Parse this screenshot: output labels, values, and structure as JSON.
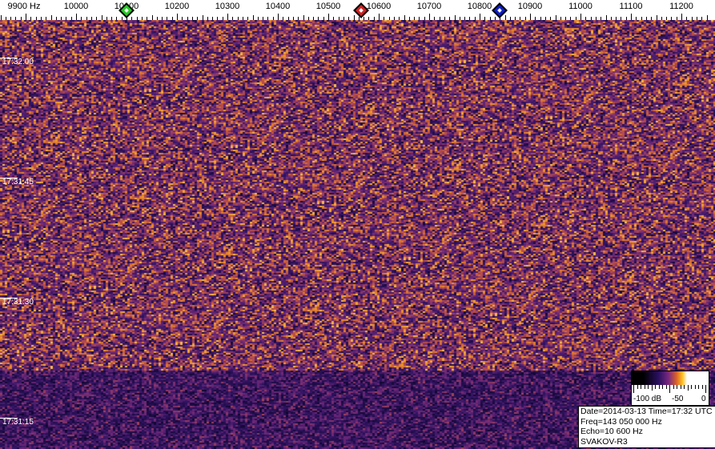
{
  "frequency_axis": {
    "labels": [
      "9900 Hz",
      "10000",
      "10100",
      "10200",
      "10300",
      "10400",
      "10500",
      "10600",
      "10700",
      "10800",
      "10900",
      "11000",
      "11100",
      "11200"
    ],
    "values_hz": [
      9900,
      10000,
      10100,
      10200,
      10300,
      10400,
      10500,
      10600,
      10700,
      10800,
      10900,
      11000,
      11100,
      11200
    ]
  },
  "markers": [
    {
      "name": "green-marker",
      "freq_hz": 10100,
      "color": "#22cc22"
    },
    {
      "name": "red-marker",
      "freq_hz": 10565,
      "color": "#cc2222"
    },
    {
      "name": "blue-marker",
      "freq_hz": 10840,
      "color": "#1020c0"
    }
  ],
  "time_axis": {
    "labels": [
      "17:32:00",
      "17:31:45",
      "17:31:30",
      "17:31:15"
    ]
  },
  "color_scale": {
    "labels": [
      "-100 dB",
      "-50",
      "0"
    ]
  },
  "info": {
    "line1": "Date=2014-03-13 Time=17:32 UTC",
    "line2": "Freq=143 050 000 Hz",
    "line3": "Echo=10 600 Hz",
    "line4": "SVAKOV-R3"
  }
}
